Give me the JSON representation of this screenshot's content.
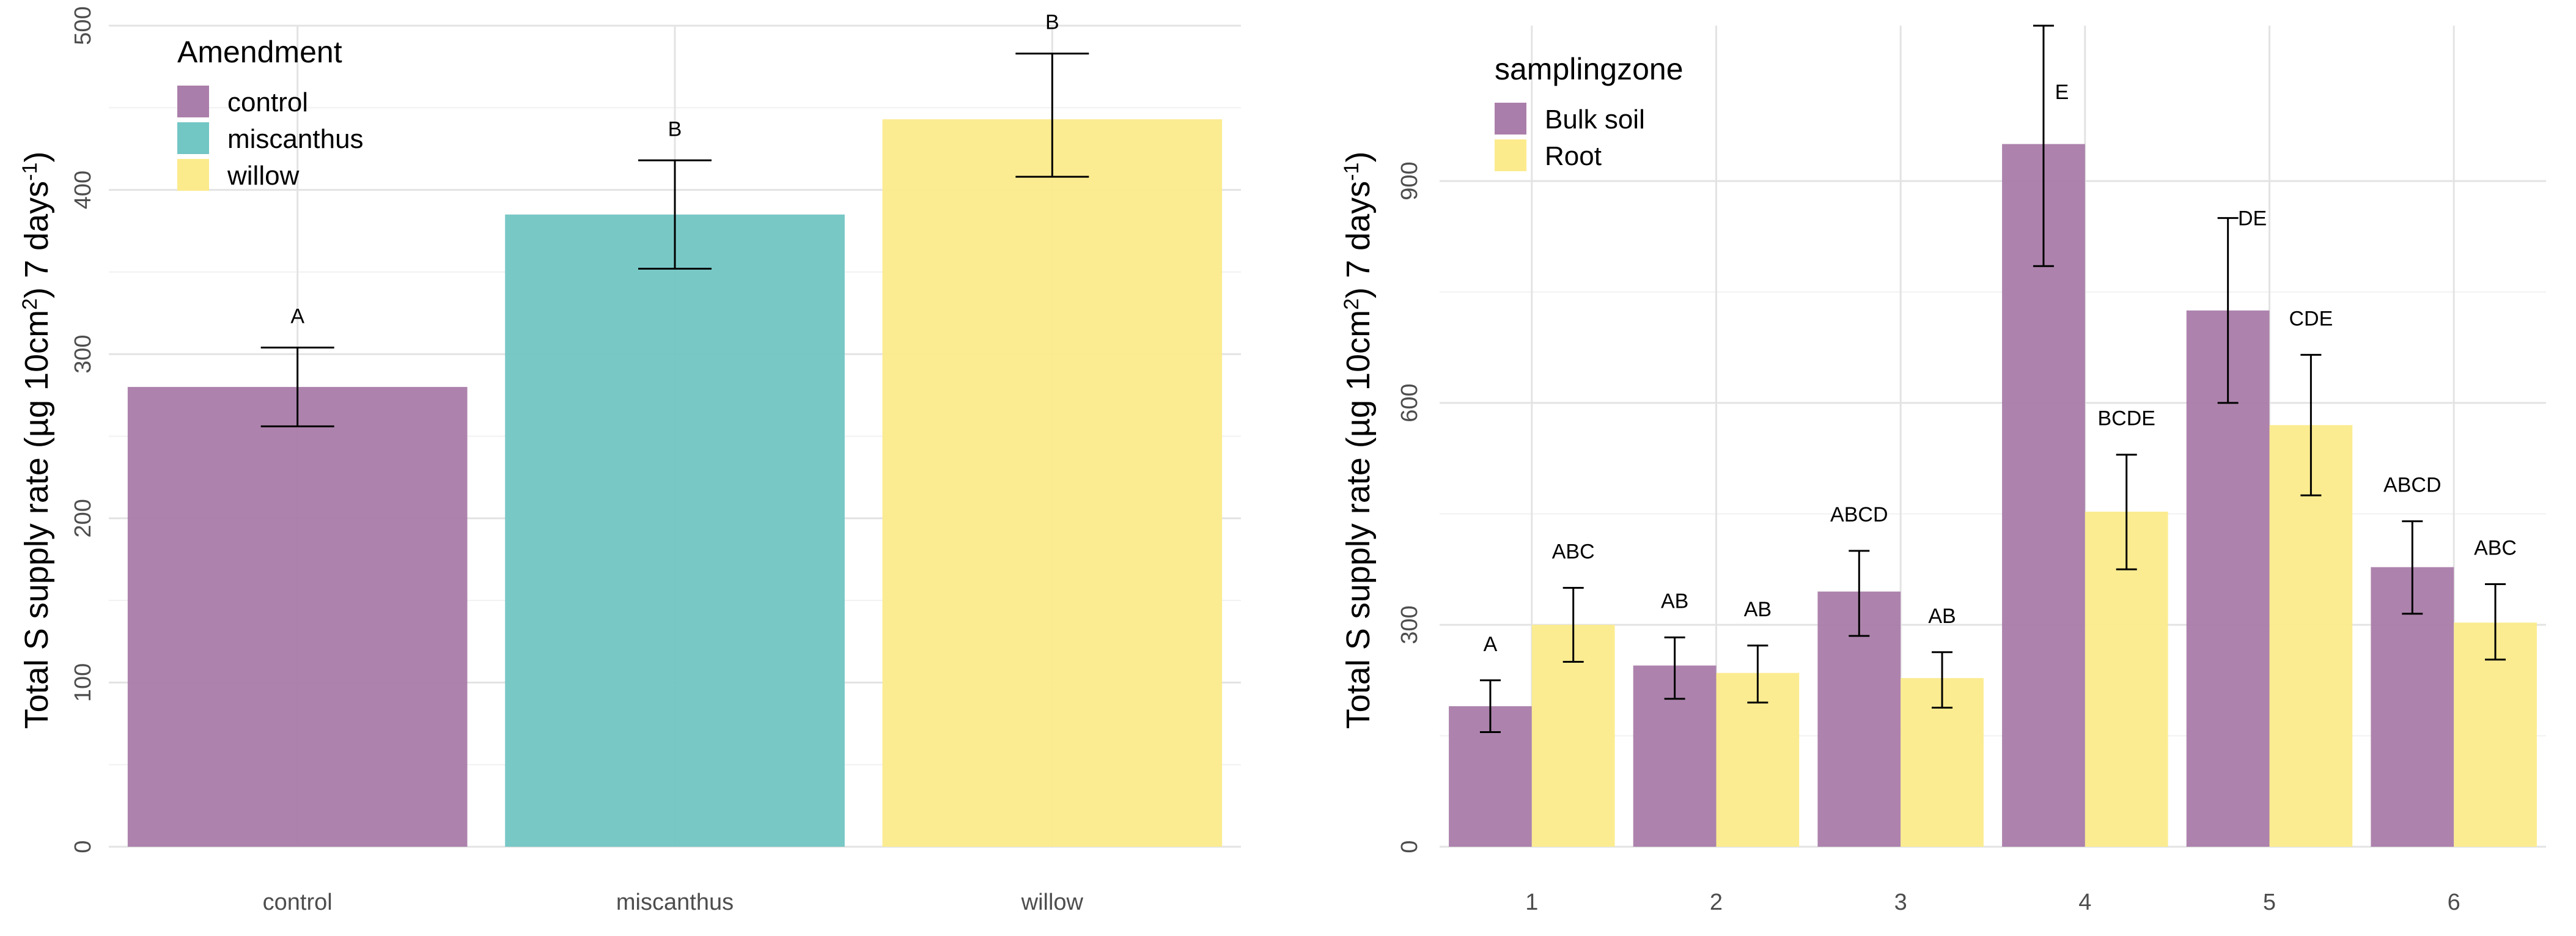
{
  "chart_data": [
    {
      "type": "bar",
      "title": "",
      "xlabel": "",
      "ylabel": "Total S supply rate (µg 10cm",
      "ylabel_sup1": "2",
      "ylabel_mid": ") 7 days",
      "ylabel_sup2": "-1",
      "ylabel_end": ")",
      "ylim": [
        0,
        500
      ],
      "yticks": [
        0,
        100,
        200,
        300,
        400,
        500
      ],
      "categories": [
        "control",
        "miscanthus",
        "willow"
      ],
      "values": [
        280,
        385,
        443
      ],
      "error_low": [
        256,
        352,
        408
      ],
      "error_high": [
        304,
        418,
        483
      ],
      "significance": [
        "A",
        "B",
        "B"
      ],
      "colors": [
        "#aa7eaa",
        "#72c6c4",
        "#fbeb8c"
      ],
      "legend": {
        "title": "Amendment",
        "position": "top-left",
        "entries": [
          "control",
          "miscanthus",
          "willow"
        ]
      }
    },
    {
      "type": "bar",
      "title": "",
      "xlabel": "",
      "ylabel": "Total S supply rate (µg 10cm",
      "ylabel_sup1": "2",
      "ylabel_mid": ") 7 days",
      "ylabel_sup2": "-1",
      "ylabel_end": ")",
      "ylim": [
        0,
        1110
      ],
      "yticks": [
        0,
        300,
        600,
        900
      ],
      "categories": [
        "1",
        "2",
        "3",
        "4",
        "5",
        "6"
      ],
      "series": [
        {
          "name": "Bulk soil",
          "color": "#aa7eaa",
          "values": [
            190,
            245,
            345,
            950,
            725,
            378
          ],
          "error_low": [
            155,
            200,
            285,
            785,
            600,
            315
          ],
          "error_high": [
            225,
            283,
            400,
            1110,
            850,
            440
          ],
          "significance": [
            "A",
            "AB",
            "ABCD",
            "E",
            "DE",
            "ABCD"
          ]
        },
        {
          "name": "Root",
          "color": "#fbeb8c",
          "values": [
            300,
            235,
            228,
            453,
            570,
            303
          ],
          "error_low": [
            250,
            195,
            188,
            375,
            475,
            253
          ],
          "error_high": [
            350,
            272,
            263,
            530,
            665,
            355
          ],
          "significance": [
            "ABC",
            "AB",
            "AB",
            "BCDE",
            "CDE",
            "ABC"
          ]
        }
      ],
      "legend": {
        "title": "samplingzone",
        "position": "top-left",
        "entries": [
          "Bulk soil",
          "Root"
        ]
      }
    }
  ]
}
